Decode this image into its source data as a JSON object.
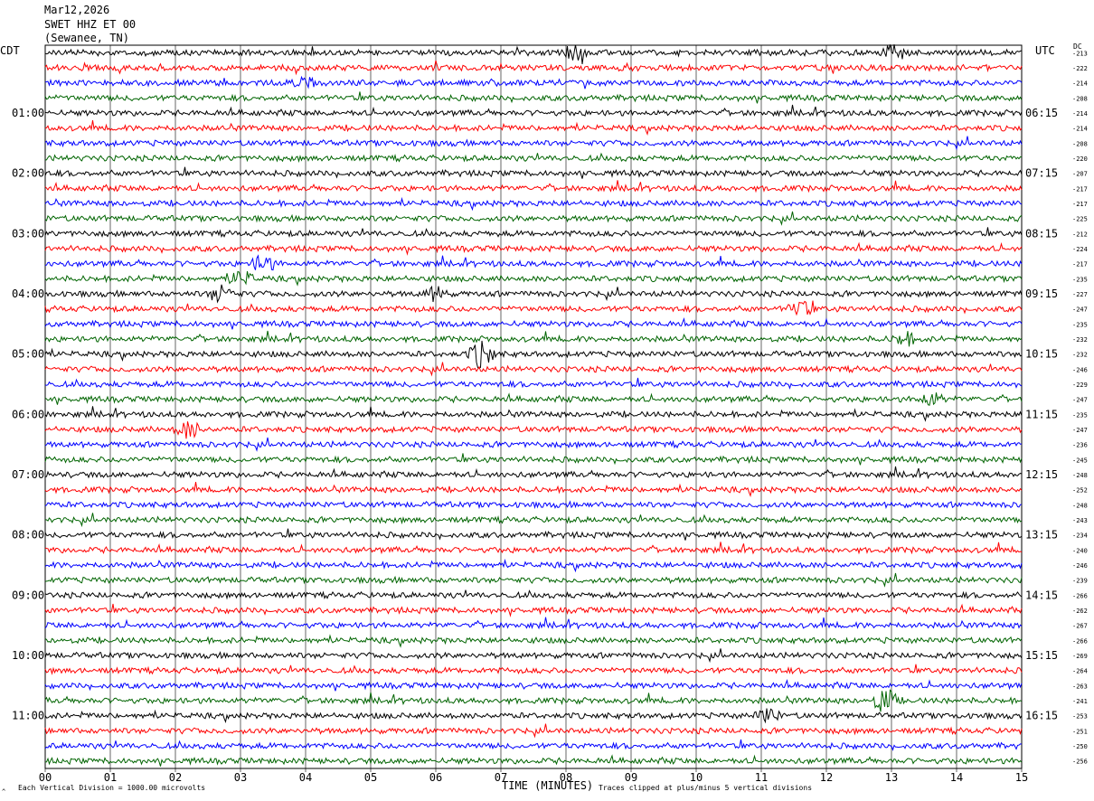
{
  "header": {
    "date": "Mar12,2026",
    "station": "SWET HHZ ET 00",
    "location": "(Sewanee, TN)"
  },
  "left_zone_label": "CDT",
  "right_zone_label": "UTC",
  "dc_label": "DC",
  "footer": {
    "scale_note": "Each Vertical Division = 1000.00 microvolts",
    "clip_note": "Traces clipped at plus/minus 5 vertical divisions",
    "marker": "^"
  },
  "colors": {
    "trace_cycle": [
      "#000000",
      "#ff0000",
      "#0000ff",
      "#006400"
    ],
    "grid": "#000000"
  },
  "chart_data": {
    "type": "line",
    "title": "SWET HHZ ET 00",
    "xlabel": "TIME (MINUTES)",
    "xlim": [
      0,
      15
    ],
    "x_ticks": [
      "00",
      "01",
      "02",
      "03",
      "04",
      "05",
      "06",
      "07",
      "08",
      "09",
      "10",
      "11",
      "12",
      "13",
      "14",
      "15"
    ],
    "minutes_per_line": 15,
    "num_lines": 48,
    "left_time_labels": [
      {
        "line": 4,
        "label": "01:00"
      },
      {
        "line": 8,
        "label": "02:00"
      },
      {
        "line": 12,
        "label": "03:00"
      },
      {
        "line": 16,
        "label": "04:00"
      },
      {
        "line": 20,
        "label": "05:00"
      },
      {
        "line": 24,
        "label": "06:00"
      },
      {
        "line": 28,
        "label": "07:00"
      },
      {
        "line": 32,
        "label": "08:00"
      },
      {
        "line": 36,
        "label": "09:00"
      },
      {
        "line": 40,
        "label": "10:00"
      },
      {
        "line": 44,
        "label": "11:00"
      }
    ],
    "right_time_labels": [
      {
        "line": 4,
        "label": "06:15"
      },
      {
        "line": 8,
        "label": "07:15"
      },
      {
        "line": 12,
        "label": "08:15"
      },
      {
        "line": 16,
        "label": "09:15"
      },
      {
        "line": 20,
        "label": "10:15"
      },
      {
        "line": 24,
        "label": "11:15"
      },
      {
        "line": 28,
        "label": "12:15"
      },
      {
        "line": 32,
        "label": "13:15"
      },
      {
        "line": 36,
        "label": "14:15"
      },
      {
        "line": 40,
        "label": "15:15"
      },
      {
        "line": 44,
        "label": "16:15"
      }
    ],
    "dc_offsets": [
      -213,
      -222,
      -214,
      -208,
      -214,
      -214,
      -208,
      -220,
      -207,
      -217,
      -217,
      -225,
      -212,
      -224,
      -217,
      -235,
      -227,
      -247,
      -235,
      -232,
      -232,
      -246,
      -229,
      -247,
      -235,
      -247,
      -236,
      -245,
      -248,
      -252,
      -248,
      -243,
      -234,
      -240,
      -246,
      -239,
      -266,
      -262,
      -267,
      -266,
      -269,
      -264,
      -263,
      -241,
      -253,
      -251,
      -250,
      -256
    ],
    "events": [
      {
        "line": 0,
        "minute": 8.15,
        "amp": 1.2
      },
      {
        "line": 0,
        "minute": 13.05,
        "amp": 1.3
      },
      {
        "line": 2,
        "minute": 4.0,
        "amp": 0.9
      },
      {
        "line": 14,
        "minute": 3.35,
        "amp": 1.4
      },
      {
        "line": 15,
        "minute": 3.0,
        "amp": 1.3
      },
      {
        "line": 16,
        "minute": 2.7,
        "amp": 1.4
      },
      {
        "line": 16,
        "minute": 6.0,
        "amp": 1.1
      },
      {
        "line": 17,
        "minute": 11.6,
        "amp": 1.3
      },
      {
        "line": 19,
        "minute": 13.2,
        "amp": 1.1
      },
      {
        "line": 20,
        "minute": 6.7,
        "amp": 2.2
      },
      {
        "line": 23,
        "minute": 13.6,
        "amp": 1.1
      },
      {
        "line": 25,
        "minute": 2.2,
        "amp": 1.4
      },
      {
        "line": 43,
        "minute": 12.9,
        "amp": 2.0
      },
      {
        "line": 44,
        "minute": 11.1,
        "amp": 1.1
      }
    ]
  }
}
